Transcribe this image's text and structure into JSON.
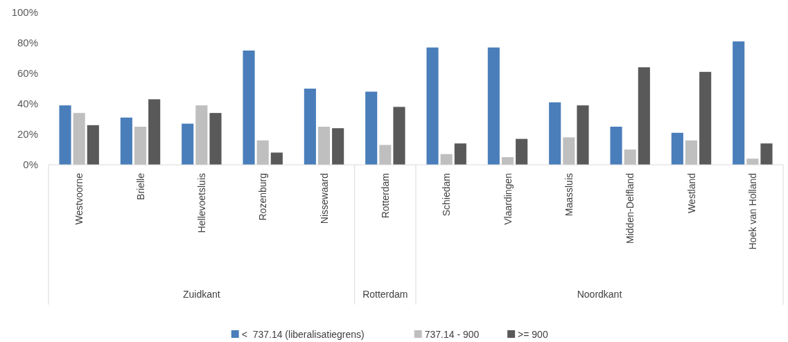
{
  "chart_data": {
    "type": "bar",
    "categories": [
      "Westvoorne",
      "Brielle",
      "Hellevoetsluis",
      "Rozenburg",
      "Nissewaard",
      "Rotterdam",
      "Schiedam",
      "Vlaardingen",
      "Maassluis",
      "Midden-Delfland",
      "Westland",
      "Hoek van Holland"
    ],
    "series": [
      {
        "name": "<  737.14 (liberalisatiegrens)",
        "color": "#4a7ebb",
        "values": [
          39,
          31,
          27,
          75,
          50,
          48,
          77,
          77,
          41,
          25,
          21,
          81
        ]
      },
      {
        "name": "737.14 - 900",
        "color": "#bfbfbf",
        "values": [
          34,
          25,
          39,
          16,
          25,
          13,
          7,
          5,
          18,
          10,
          16,
          4
        ]
      },
      {
        "name": ">= 900",
        "color": "#595959",
        "values": [
          26,
          43,
          34,
          8,
          24,
          38,
          14,
          17,
          39,
          64,
          61,
          14
        ]
      }
    ],
    "ylim": [
      0,
      100
    ],
    "yticks": [
      {
        "value": 0,
        "label": "0%"
      },
      {
        "value": 20,
        "label": "20%"
      },
      {
        "value": 40,
        "label": "40%"
      },
      {
        "value": 60,
        "label": "60%"
      },
      {
        "value": 80,
        "label": "80%"
      },
      {
        "value": 100,
        "label": "100%"
      }
    ],
    "annotations": [
      "Zuidkant",
      "Rotterdam",
      "Noordkant"
    ],
    "legend": "bottom",
    "grid": false
  }
}
